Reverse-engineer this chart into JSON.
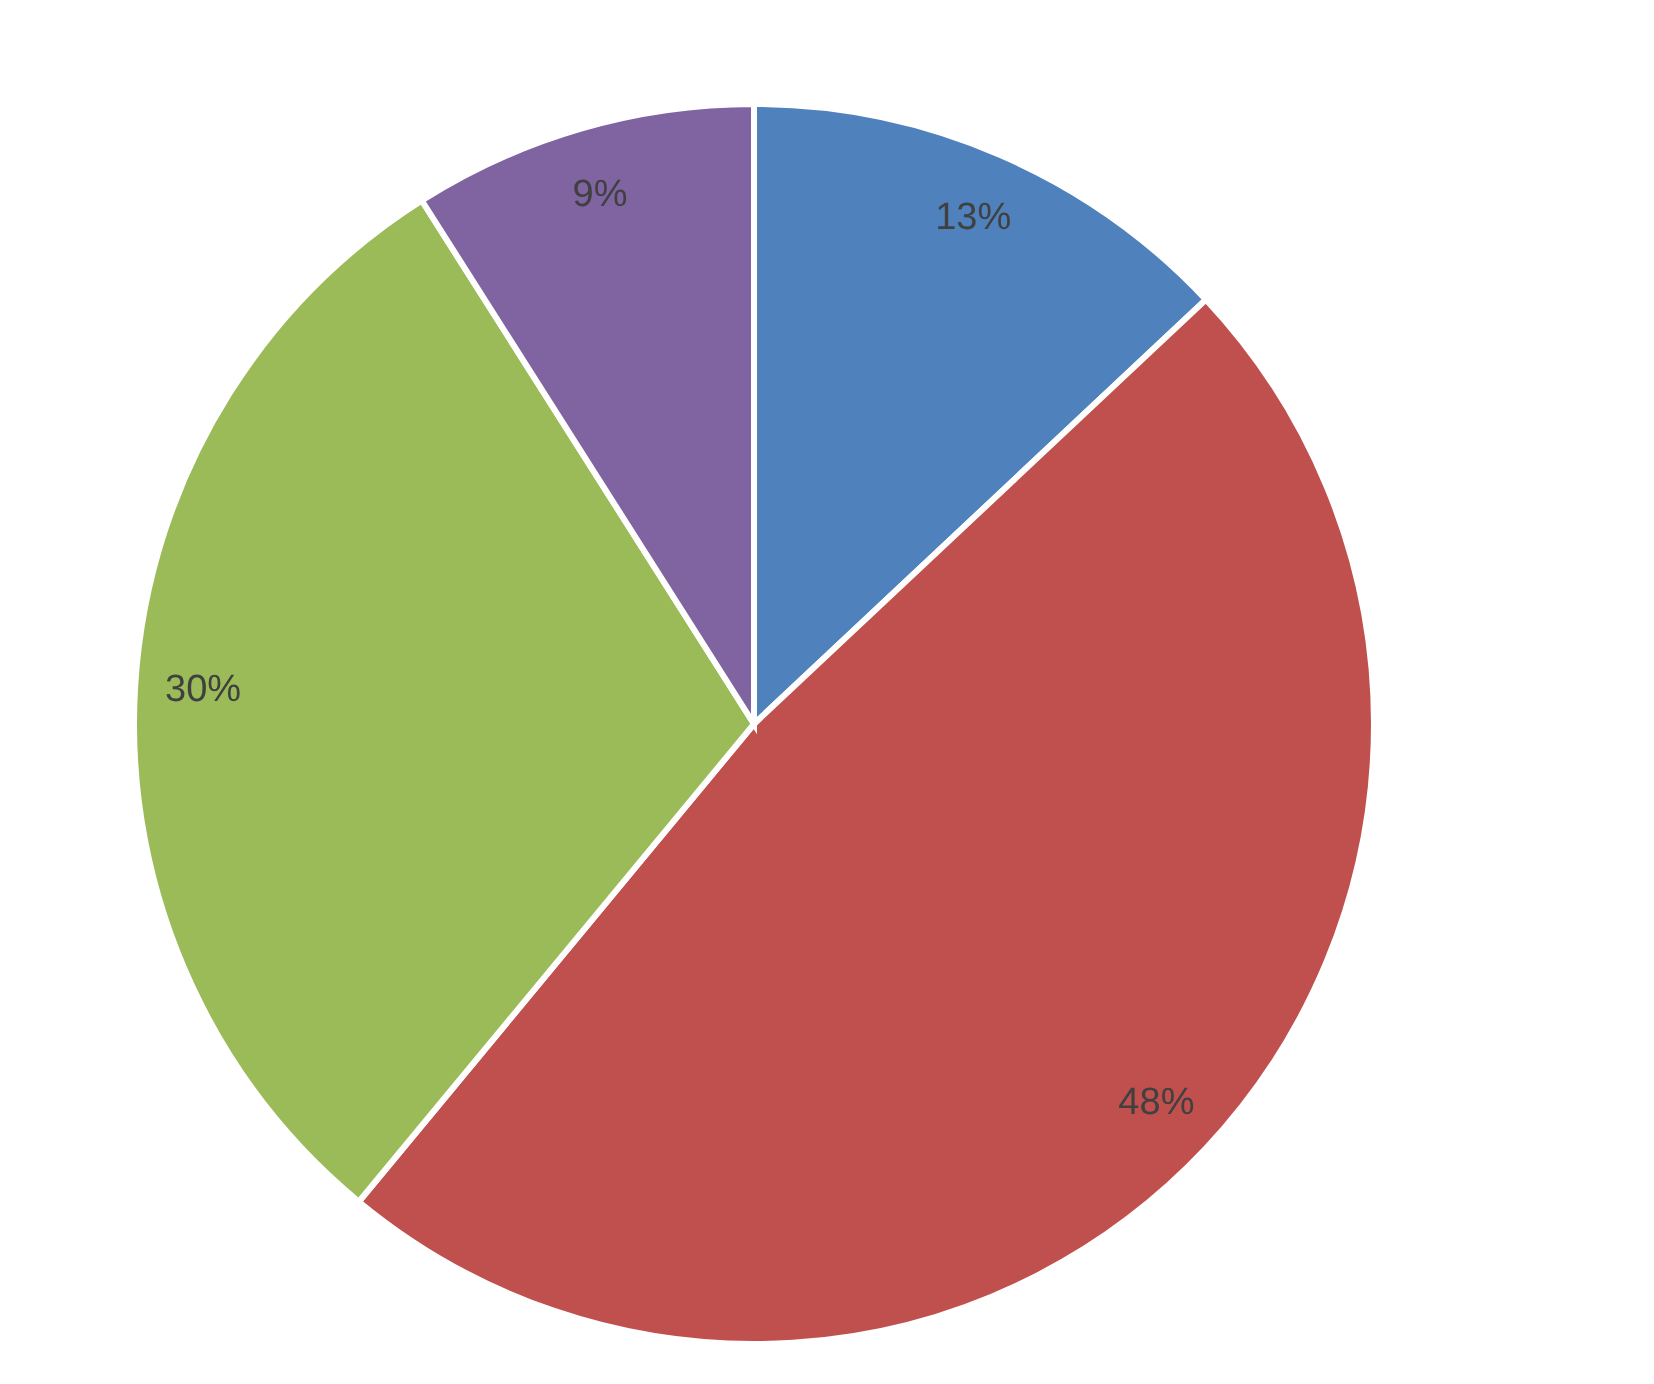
{
  "chart_data": {
    "type": "pie",
    "categories": [
      null,
      null,
      null,
      null
    ],
    "values": [
      13,
      48,
      30,
      9
    ],
    "colors": [
      "#4f81bd",
      "#c0504d",
      "#9bbb59",
      "#8064a2"
    ],
    "value_labels": [
      "13%",
      "48%",
      "30%",
      "9%"
    ]
  }
}
